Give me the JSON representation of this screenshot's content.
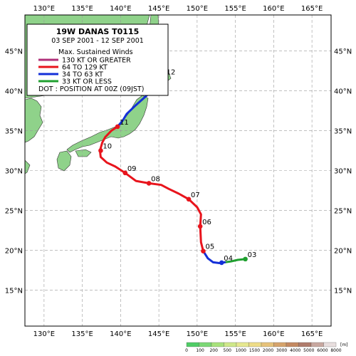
{
  "map": {
    "lon_range": [
      127.5,
      167.5
    ],
    "lat_range": [
      10.5,
      49.5
    ],
    "lon_ticks": [
      130,
      135,
      140,
      145,
      150,
      155,
      160,
      165
    ],
    "lat_ticks": [
      15,
      20,
      25,
      30,
      35,
      40,
      45
    ],
    "lon_suffix": "°E",
    "lat_suffix": "°N"
  },
  "legend": {
    "title": "19W  DANAS  T0115",
    "date_range": "03 SEP 2001 - 12 SEP 2001",
    "winds_header": "Max. Sustained Winds",
    "dot_note": "DOT : POSITION AT 00Z (09JST)",
    "categories": [
      {
        "label": "130 KT OR GREATER",
        "color": "#b0307a"
      },
      {
        "label": "64 TO 129 KT",
        "color": "#e8141c"
      },
      {
        "label": "34 TO 63 KT",
        "color": "#1430d8"
      },
      {
        "label": "33 KT OR LESS",
        "color": "#20a030"
      }
    ]
  },
  "track": {
    "segments": [
      {
        "category": 3,
        "points": [
          [
            156.3,
            18.9
          ],
          [
            155.3,
            18.8
          ],
          [
            154.4,
            18.6
          ],
          [
            153.6,
            18.5
          ]
        ]
      },
      {
        "category": 2,
        "points": [
          [
            153.6,
            18.5
          ],
          [
            152.9,
            18.4
          ],
          [
            152.1,
            18.5
          ],
          [
            151.4,
            19.0
          ],
          [
            150.8,
            19.9
          ]
        ]
      },
      {
        "category": 1,
        "points": [
          [
            150.8,
            19.9
          ],
          [
            150.5,
            21.0
          ],
          [
            150.4,
            23.0
          ],
          [
            150.5,
            24.5
          ],
          [
            150.0,
            25.4
          ],
          [
            148.9,
            26.4
          ],
          [
            147.6,
            27.1
          ],
          [
            146.3,
            27.7
          ],
          [
            145.3,
            28.2
          ],
          [
            143.7,
            28.4
          ],
          [
            142.0,
            28.7
          ],
          [
            140.6,
            29.7
          ],
          [
            139.3,
            30.5
          ],
          [
            138.2,
            31.0
          ],
          [
            137.4,
            31.7
          ],
          [
            137.3,
            32.5
          ],
          [
            137.6,
            33.5
          ],
          [
            138.0,
            34.2
          ],
          [
            138.8,
            35.0
          ],
          [
            139.6,
            35.5
          ]
        ]
      },
      {
        "category": 2,
        "points": [
          [
            139.6,
            35.5
          ],
          [
            140.3,
            36.3
          ],
          [
            140.8,
            37.1
          ],
          [
            142.0,
            38.2
          ],
          [
            143.4,
            39.4
          ],
          [
            144.6,
            40.6
          ],
          [
            145.7,
            41.8
          ]
        ]
      }
    ],
    "positions": [
      {
        "day": "03",
        "lon": 156.3,
        "lat": 18.9,
        "category": 3
      },
      {
        "day": "04",
        "lon": 153.2,
        "lat": 18.45,
        "category": 2
      },
      {
        "day": "05",
        "lon": 150.8,
        "lat": 19.9,
        "category": 1
      },
      {
        "day": "06",
        "lon": 150.4,
        "lat": 23.0,
        "category": 1
      },
      {
        "day": "07",
        "lon": 148.9,
        "lat": 26.4,
        "category": 1
      },
      {
        "day": "08",
        "lon": 143.7,
        "lat": 28.4,
        "category": 1
      },
      {
        "day": "09",
        "lon": 140.6,
        "lat": 29.7,
        "category": 1
      },
      {
        "day": "10",
        "lon": 137.4,
        "lat": 32.5,
        "category": 1
      },
      {
        "day": "11",
        "lon": 139.6,
        "lat": 35.5,
        "category": 1
      },
      {
        "day": "12",
        "lon": 145.7,
        "lat": 41.8,
        "category": 2
      }
    ]
  },
  "elevation_scale": {
    "unit": "[m]",
    "labels": [
      "0",
      "100",
      "200",
      "500",
      "1000",
      "1500",
      "2000",
      "3000",
      "4000",
      "5000",
      "6000",
      "8000"
    ],
    "colors": [
      "#4fcc66",
      "#7cd876",
      "#a8e27c",
      "#cfe88a",
      "#e6e890",
      "#eedc88",
      "#e6c27a",
      "#d6a46c",
      "#c48a62",
      "#b07c6c",
      "#c8a8a0",
      "#e8dede"
    ]
  }
}
